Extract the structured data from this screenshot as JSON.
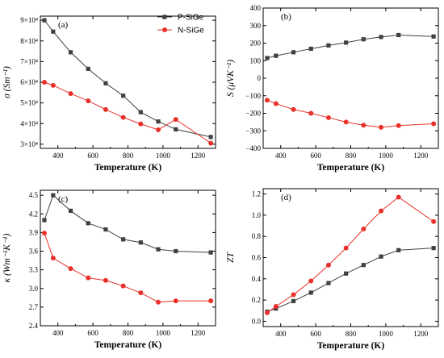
{
  "legend": {
    "p": "P-SiGe",
    "n": "N-SiGe"
  },
  "colors": {
    "p": "#404040",
    "n": "#e8312b"
  },
  "chart_data": [
    {
      "id": "a",
      "type": "line",
      "tag": "(a)",
      "xlabel": "Temperature (K)",
      "ylabel": "σ (Sm⁻¹)",
      "xlim": [
        300,
        1300
      ],
      "ylim": [
        28000,
        92000
      ],
      "xticks": [
        400,
        600,
        800,
        1000,
        1200
      ],
      "yticks": [
        30000,
        40000,
        50000,
        60000,
        70000,
        80000,
        90000
      ],
      "ytick_labels": [
        "3×10⁴",
        "4×10⁴",
        "5×10⁴",
        "6×10⁴",
        "7×10⁴",
        "8×10⁴",
        "9×10⁴"
      ],
      "series": [
        {
          "name": "P-SiGe",
          "marker": "square",
          "x": [
            323,
            373,
            473,
            573,
            673,
            773,
            873,
            973,
            1073,
            1273
          ],
          "y": [
            90000,
            84500,
            74500,
            66500,
            59500,
            53500,
            45500,
            41000,
            37200,
            33500
          ]
        },
        {
          "name": "N-SiGe",
          "marker": "circle",
          "x": [
            323,
            373,
            473,
            573,
            673,
            773,
            873,
            973,
            1073,
            1273
          ],
          "y": [
            60000,
            58500,
            54500,
            51000,
            46800,
            43000,
            39800,
            37000,
            42000,
            30500
          ]
        }
      ]
    },
    {
      "id": "b",
      "type": "line",
      "tag": "(b)",
      "xlabel": "Temperature (K)",
      "ylabel": "S (μVK⁻¹)",
      "xlim": [
        300,
        1300
      ],
      "ylim": [
        -400,
        400
      ],
      "xticks": [
        400,
        600,
        800,
        1000,
        1200
      ],
      "yticks": [
        -400,
        -300,
        -200,
        -100,
        0,
        100,
        200,
        300,
        400
      ],
      "ytick_labels": [
        "−400",
        "−300",
        "−200",
        "−100",
        "0",
        "100",
        "200",
        "300",
        "400"
      ],
      "series": [
        {
          "name": "P-SiGe",
          "marker": "square",
          "x": [
            323,
            373,
            473,
            573,
            673,
            773,
            873,
            973,
            1073,
            1273
          ],
          "y": [
            115,
            128,
            148,
            168,
            187,
            203,
            222,
            235,
            246,
            238
          ]
        },
        {
          "name": "N-SiGe",
          "marker": "circle",
          "x": [
            323,
            373,
            473,
            573,
            673,
            773,
            873,
            973,
            1073,
            1273
          ],
          "y": [
            -125,
            -145,
            -178,
            -200,
            -225,
            -250,
            -268,
            -280,
            -270,
            -260
          ]
        }
      ]
    },
    {
      "id": "c",
      "type": "line",
      "tag": "(c)",
      "xlabel": "Temperature (K)",
      "ylabel": "κ (Wm⁻¹K⁻¹)",
      "xlim": [
        300,
        1300
      ],
      "ylim": [
        2.4,
        4.58
      ],
      "xticks": [
        400,
        600,
        800,
        1000,
        1200
      ],
      "yticks": [
        2.4,
        2.7,
        3.0,
        3.3,
        3.6,
        3.9,
        4.2,
        4.5
      ],
      "ytick_labels": [
        "2.4",
        "2.7",
        "3.0",
        "3.3",
        "3.6",
        "3.9",
        "4.2",
        "4.5"
      ],
      "series": [
        {
          "name": "P-SiGe",
          "marker": "square",
          "x": [
            323,
            373,
            473,
            573,
            673,
            773,
            873,
            973,
            1073,
            1273
          ],
          "y": [
            4.1,
            4.5,
            4.25,
            4.05,
            3.95,
            3.79,
            3.74,
            3.63,
            3.6,
            3.58
          ]
        },
        {
          "name": "N-SiGe",
          "marker": "circle",
          "x": [
            323,
            373,
            473,
            573,
            673,
            773,
            873,
            973,
            1073,
            1273
          ],
          "y": [
            3.89,
            3.49,
            3.32,
            3.17,
            3.13,
            3.04,
            2.93,
            2.78,
            2.8,
            2.8
          ]
        }
      ]
    },
    {
      "id": "d",
      "type": "line",
      "tag": "(d)",
      "xlabel": "Temperature (K)",
      "ylabel": "ZT",
      "xlim": [
        300,
        1300
      ],
      "ylim": [
        -0.05,
        1.25
      ],
      "xticks": [
        400,
        600,
        800,
        1000,
        1200
      ],
      "yticks": [
        0.0,
        0.2,
        0.4,
        0.6,
        0.8,
        1.0,
        1.2
      ],
      "ytick_labels": [
        "0.0",
        "0.2",
        "0.4",
        "0.6",
        "0.8",
        "1.0",
        "1.2"
      ],
      "series": [
        {
          "name": "P-SiGe",
          "marker": "square",
          "x": [
            323,
            373,
            473,
            573,
            673,
            773,
            873,
            973,
            1073,
            1273
          ],
          "y": [
            0.09,
            0.12,
            0.19,
            0.27,
            0.36,
            0.45,
            0.53,
            0.61,
            0.67,
            0.69
          ]
        },
        {
          "name": "N-SiGe",
          "marker": "circle",
          "x": [
            323,
            373,
            473,
            573,
            673,
            773,
            873,
            973,
            1073,
            1273
          ],
          "y": [
            0.08,
            0.14,
            0.25,
            0.38,
            0.53,
            0.69,
            0.87,
            1.04,
            1.17,
            0.94
          ]
        }
      ]
    }
  ]
}
